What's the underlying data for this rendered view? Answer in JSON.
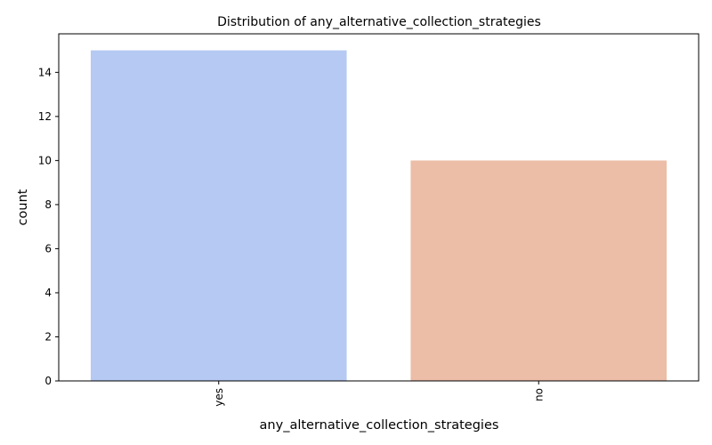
{
  "chart_data": {
    "type": "bar",
    "title": "Distribution of any_alternative_collection_strategies",
    "xlabel": "any_alternative_collection_strategies",
    "ylabel": "count",
    "categories": [
      "yes",
      "no"
    ],
    "values": [
      15,
      10
    ],
    "colors": [
      "#b5c9f3",
      "#ecbda7"
    ],
    "ylim": [
      0,
      15.75
    ],
    "yticks": [
      0,
      2,
      4,
      6,
      8,
      10,
      12,
      14
    ],
    "grid": false,
    "legend": "none"
  }
}
